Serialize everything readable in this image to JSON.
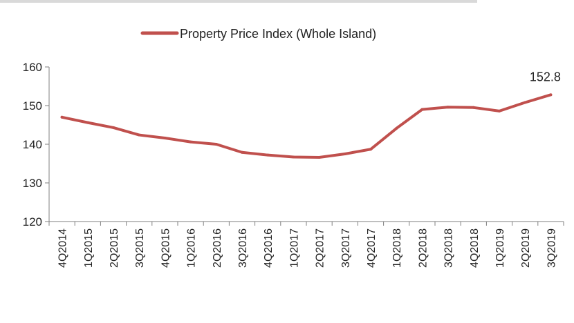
{
  "chart_data": {
    "type": "line",
    "title": "",
    "xlabel": "",
    "ylabel": "",
    "categories": [
      "4Q2014",
      "1Q2015",
      "2Q2015",
      "3Q2015",
      "4Q2015",
      "1Q2016",
      "2Q2016",
      "3Q2016",
      "4Q2016",
      "1Q2017",
      "2Q2017",
      "3Q2017",
      "4Q2017",
      "1Q2018",
      "2Q2018",
      "3Q2018",
      "4Q2018",
      "1Q2019",
      "2Q2019",
      "3Q2019"
    ],
    "series": [
      {
        "name": "Property Price Index (Whole Island)",
        "color": "#c0504d",
        "values": [
          147.0,
          145.6,
          144.3,
          142.4,
          141.6,
          140.6,
          140.0,
          137.9,
          137.2,
          136.7,
          136.6,
          137.5,
          138.7,
          144.1,
          149.0,
          149.6,
          149.5,
          148.6,
          150.8,
          152.8
        ]
      }
    ],
    "ylim": [
      120,
      160
    ],
    "yticks": [
      "120",
      "130",
      "140",
      "150",
      "160"
    ],
    "grid": false,
    "legend_position": "top-center",
    "data_labels": [
      {
        "category": "3Q2019",
        "text": "152.8"
      }
    ]
  }
}
